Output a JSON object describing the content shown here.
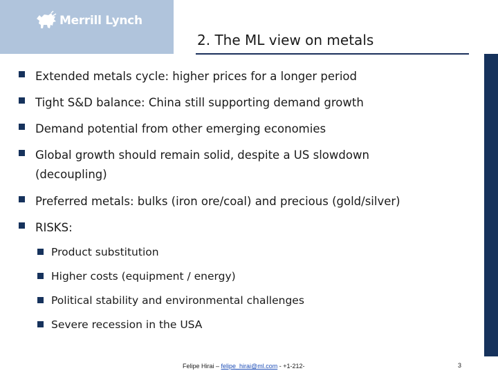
{
  "header": {
    "logo_text": "Merrill Lynch",
    "logo_icon": "bull-icon",
    "title": "2. The ML view on metals"
  },
  "bullets": [
    {
      "lines": [
        "Extended metals cycle: higher prices for a longer period"
      ]
    },
    {
      "lines": [
        "Tight S&D balance: China still supporting demand growth"
      ]
    },
    {
      "lines": [
        "Demand potential from other emerging economies"
      ]
    },
    {
      "lines": [
        "Global growth should remain solid, despite a US slowdown",
        "(decoupling)"
      ]
    },
    {
      "lines": [
        "Preferred metals: bulks (iron ore/coal) and precious (gold/silver)"
      ]
    },
    {
      "lines": [
        "RISKS:"
      ]
    }
  ],
  "risks": [
    "Product substitution",
    "Higher costs (equipment / energy)",
    "Political stability and environmental challenges",
    "Severe recession in the USA"
  ],
  "footer": {
    "name": "Felipe Hirai – ",
    "email": "felipe_hirai@ml.com",
    "phone": " - +1-212-",
    "page_number": "3"
  },
  "colors": {
    "logo_background": "#b0c4dc",
    "accent_navy": "#16325c",
    "link": "#1f4fb8"
  }
}
